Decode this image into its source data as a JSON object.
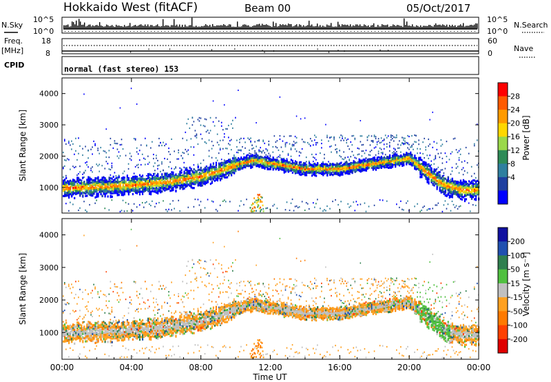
{
  "header": {
    "title": "Hokkaido West (fitACF)",
    "beam": "Beam 00",
    "date": "05/Oct/2017"
  },
  "summary": {
    "nsky_label": "N.Sky",
    "nsky_ticks": [
      "10^5",
      "10^0"
    ],
    "nsearch_label": "N.Search",
    "nsearch_ticks": [
      "10^5",
      "10^0"
    ],
    "freq_label": "Freq.",
    "freq_unit": "[MHz]",
    "freq_ticks": [
      "18",
      "8"
    ],
    "nave_label": "Nave",
    "nave_ticks": [
      "60",
      "0"
    ],
    "cpid_label": "CPID",
    "cpid_text": "normal (fast stereo) 153"
  },
  "panels": {
    "power": {
      "ylabel": "Slant Range [km]",
      "colorbar_label": "Power [dB]",
      "colorbar_ticks": [
        "28",
        "24",
        "20",
        "16",
        "12",
        "8",
        "4"
      ],
      "colorbar_colors": [
        "#ff0000",
        "#ff5a00",
        "#ff9a00",
        "#ffd700",
        "#9ad84a",
        "#2e8b57",
        "#2f7f9f",
        "#1f3fa0",
        "#0000ff"
      ]
    },
    "velocity": {
      "ylabel": "Slant Range [km]",
      "colorbar_label": "Velocity [m s⁻¹]",
      "colorbar_ticks": [
        "200",
        "100",
        "50",
        "15",
        "-15",
        "-50",
        "-100",
        "-200"
      ],
      "colorbar_colors": [
        "#1010a0",
        "#2050b0",
        "#2f7f4f",
        "#50c040",
        "#c0c0c0",
        "#ffa020",
        "#ff7a00",
        "#ff4000",
        "#e00000"
      ]
    }
  },
  "chart_data": {
    "type": "heatmap",
    "xlabel": "Time UT",
    "x_ticks": [
      "00:00",
      "04:00",
      "08:00",
      "12:00",
      "16:00",
      "20:00",
      "00:00"
    ],
    "x_range_hours": [
      0,
      24
    ],
    "ylim": [
      180,
      4500
    ],
    "y_ticks": [
      1000,
      2000,
      3000,
      4000
    ],
    "main_echo_band_km": {
      "hours": [
        0,
        2,
        4,
        6,
        8,
        9,
        10,
        11,
        12,
        14,
        16,
        18,
        20,
        21,
        22,
        23,
        24
      ],
      "range_km": [
        1000,
        1050,
        1100,
        1200,
        1380,
        1550,
        1750,
        1900,
        1800,
        1620,
        1620,
        1800,
        1960,
        1500,
        1100,
        950,
        950
      ]
    },
    "echo_power_db": [
      4,
      28
    ],
    "velocity_range_ms": [
      -200,
      200
    ]
  }
}
